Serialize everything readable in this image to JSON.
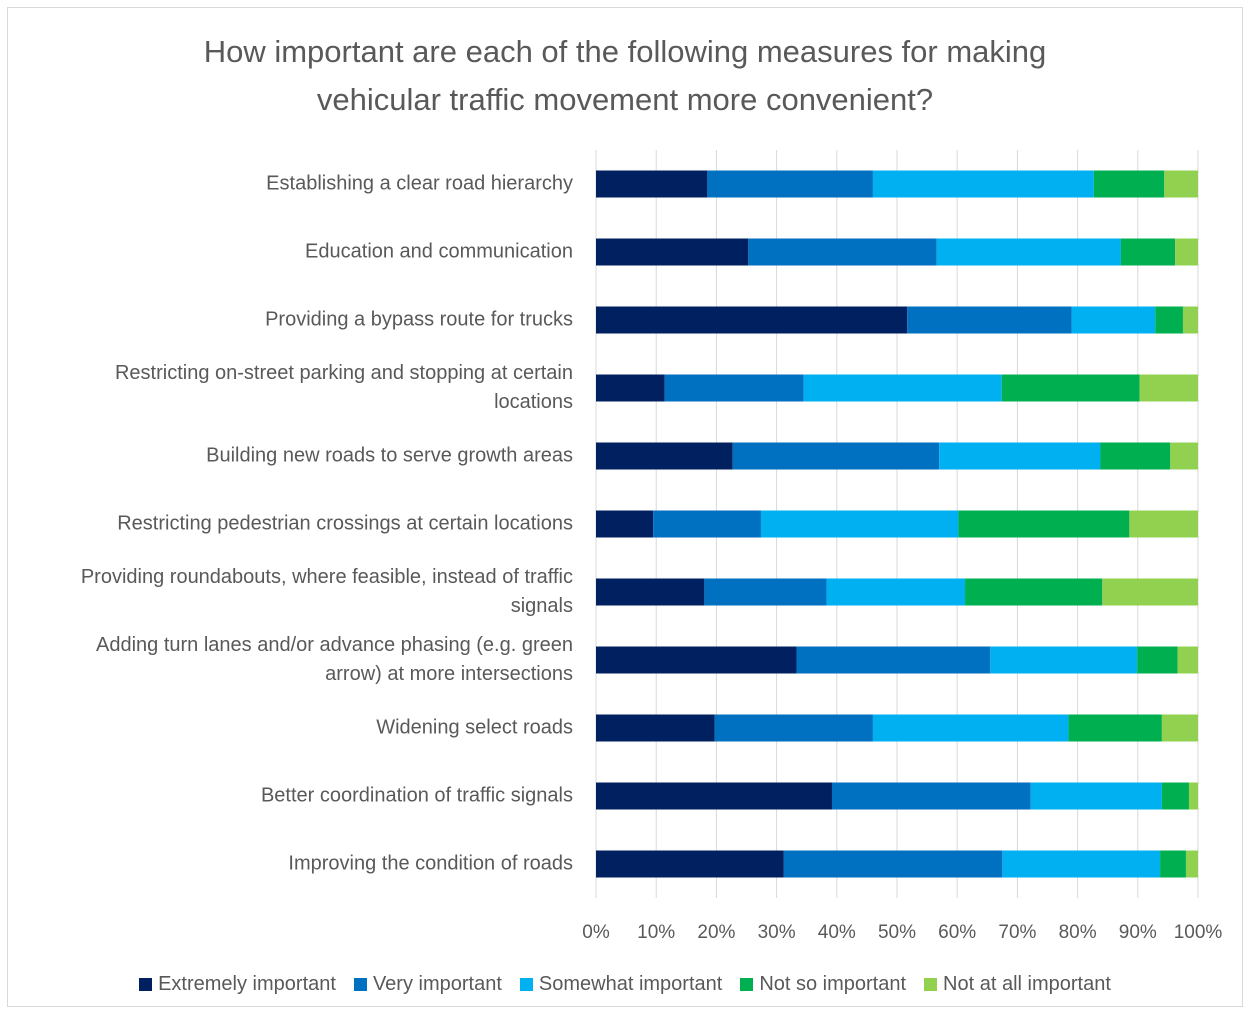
{
  "chart_data": {
    "type": "bar",
    "orientation": "horizontal",
    "stacked": "percent",
    "title": "How important are each of the following measures for making vehicular traffic movement more convenient?",
    "title_lines": [
      "How important are each of the following measures for making",
      "vehicular traffic movement more convenient?"
    ],
    "categories": [
      [
        "Establishing a clear road hierarchy"
      ],
      [
        "Education and communication"
      ],
      [
        "Providing a bypass route for trucks"
      ],
      [
        "Restricting on-street parking and stopping at certain",
        "locations"
      ],
      [
        "Building new roads to serve growth areas"
      ],
      [
        "Restricting pedestrian crossings at certain locations"
      ],
      [
        "Providing roundabouts, where feasible, instead of traffic",
        "signals"
      ],
      [
        "Adding turn lanes and/or advance phasing (e.g. green",
        "arrow) at more intersections"
      ],
      [
        "Widening select roads"
      ],
      [
        "Better coordination of traffic signals"
      ],
      [
        "Improving the condition of roads"
      ]
    ],
    "series": [
      {
        "name": "Extremely important",
        "color": "#002060",
        "values": [
          18.5,
          25.3,
          51.7,
          11.4,
          22.7,
          9.5,
          18.0,
          33.3,
          19.7,
          39.2,
          31.2
        ]
      },
      {
        "name": "Very important",
        "color": "#0070C0",
        "values": [
          27.5,
          31.3,
          27.3,
          23.1,
          34.3,
          17.9,
          20.3,
          32.2,
          26.3,
          33.0,
          36.3
        ]
      },
      {
        "name": "Somewhat important",
        "color": "#00B0F0",
        "values": [
          36.7,
          30.6,
          13.9,
          32.9,
          26.8,
          32.8,
          23.0,
          24.4,
          32.5,
          21.8,
          26.2
        ]
      },
      {
        "name": "Not so important",
        "color": "#00B050",
        "values": [
          11.7,
          9.0,
          4.6,
          22.9,
          11.6,
          28.4,
          22.8,
          6.7,
          15.5,
          4.5,
          4.3
        ]
      },
      {
        "name": "Not at all important",
        "color": "#92D050",
        "values": [
          5.6,
          3.8,
          2.5,
          9.7,
          4.6,
          11.4,
          15.9,
          3.4,
          6.0,
          1.5,
          2.0
        ]
      }
    ],
    "x_ticks": [
      "0%",
      "10%",
      "20%",
      "30%",
      "40%",
      "50%",
      "60%",
      "70%",
      "80%",
      "90%",
      "100%"
    ],
    "xlim": [
      0,
      100
    ],
    "grid": true,
    "legend_position": "bottom"
  }
}
